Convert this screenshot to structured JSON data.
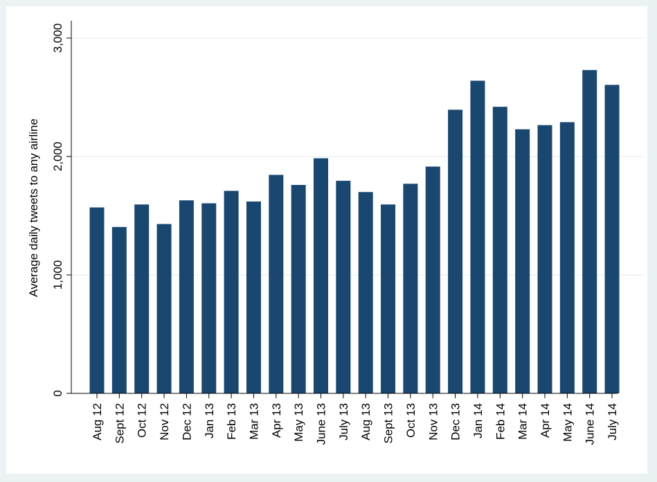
{
  "chart_data": {
    "type": "bar",
    "title": "",
    "xlabel": "",
    "ylabel": "Average daily tweets to any airline",
    "ylim": [
      0,
      3000
    ],
    "yticks": [
      0,
      1000,
      2000,
      3000
    ],
    "ytick_labels": [
      "0",
      "1,000",
      "2,000",
      "3,000"
    ],
    "grid": true,
    "legend": "none",
    "categories": [
      "Aug 12",
      "Sept 12",
      "Oct 12",
      "Nov 12",
      "Dec 12",
      "Jan 13",
      "Feb 13",
      "Mar 13",
      "Apr 13",
      "May 13",
      "June 13",
      "July 13",
      "Aug 13",
      "Sept 13",
      "Oct 13",
      "Nov 13",
      "Dec 13",
      "Jan 14",
      "Feb 14",
      "Mar 14",
      "Apr 14",
      "May 14",
      "June 14",
      "July 14"
    ],
    "values": [
      1570,
      1405,
      1595,
      1430,
      1630,
      1605,
      1710,
      1620,
      1845,
      1760,
      1985,
      1795,
      1700,
      1595,
      1770,
      1915,
      2395,
      2640,
      2420,
      2230,
      2265,
      2290,
      2730,
      2605
    ],
    "colors": {
      "bar": "#1a476f",
      "background": "#eaf2f3",
      "plot_background": "#ffffff",
      "grid": "#eaf2f3"
    }
  }
}
